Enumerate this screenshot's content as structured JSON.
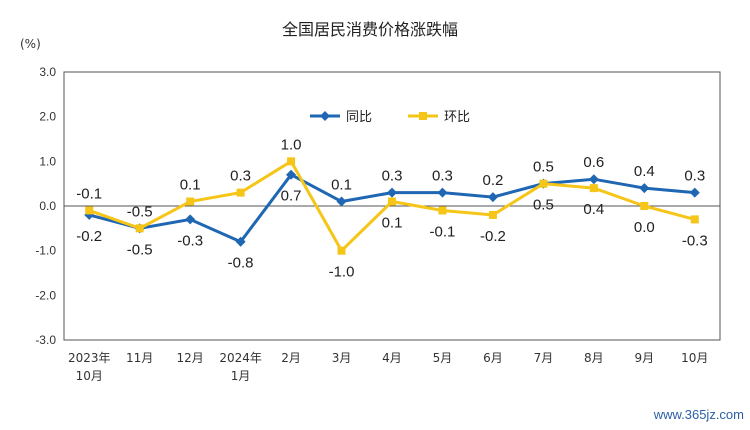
{
  "chart_data": {
    "type": "line",
    "title": "全国居民消费价格涨跌幅",
    "ylabel": "(%)",
    "xlabel": "",
    "ylim": [
      -3.0,
      3.0
    ],
    "yticks": [
      "3.0",
      "2.0",
      "1.0",
      "0.0",
      "-1.0",
      "-2.0",
      "-3.0"
    ],
    "categories": [
      "2023年|10月",
      "11月",
      "12月",
      "2024年|1月",
      "2月",
      "3月",
      "4月",
      "5月",
      "6月",
      "7月",
      "8月",
      "9月",
      "10月"
    ],
    "series": [
      {
        "name": "同比",
        "color": "#1f66b3",
        "marker": "diamond",
        "values": [
          -0.2,
          -0.5,
          -0.3,
          -0.8,
          0.7,
          0.1,
          0.3,
          0.3,
          0.2,
          0.5,
          0.6,
          0.4,
          0.3
        ],
        "labels": [
          "-0.2",
          "-0.5",
          "-0.3",
          "-0.8",
          "0.7",
          "0.1",
          "0.3",
          "0.3",
          "0.2",
          "0.5",
          "0.6",
          "0.4",
          "0.3"
        ]
      },
      {
        "name": "环比",
        "color": "#f5c518",
        "marker": "square",
        "values": [
          -0.1,
          -0.5,
          0.1,
          0.3,
          1.0,
          -1.0,
          0.1,
          -0.1,
          -0.2,
          0.5,
          0.4,
          0.0,
          -0.3
        ],
        "labels": [
          "-0.1",
          "-0.5",
          "0.1",
          "0.3",
          "1.0",
          "-1.0",
          "0.1",
          "-0.1",
          "-0.2",
          "0.5",
          "0.4",
          "0.0",
          "-0.3"
        ]
      }
    ],
    "legend": "top-center",
    "grid": false
  },
  "watermark": "www.365jz.com"
}
